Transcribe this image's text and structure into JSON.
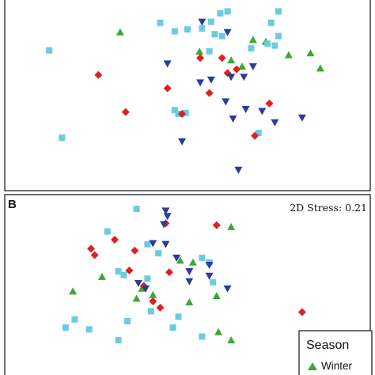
{
  "colors": {
    "Winter": "#3aaa35",
    "cyan_square": "#6ccbe0",
    "red_diamond": "#e02020",
    "blue_triangle": "#2a3c9e"
  },
  "panel_b_label": "B",
  "stress_label": "2D Stress: 0.21",
  "legend": {
    "title": "Season",
    "entries": [
      {
        "label": "Winter",
        "marker": "triangle-up",
        "color_key": "Winter"
      }
    ]
  },
  "chart_data": [
    {
      "type": "scatter",
      "panel": "A",
      "title": "",
      "xlabel": "",
      "ylabel": "",
      "xlim": [
        0,
        100
      ],
      "ylim": [
        0,
        100
      ],
      "grid": false,
      "series": [
        {
          "marker": "triangle-up",
          "color_key": "Winter",
          "name": "Winter",
          "x": [
            31.5,
            68.0,
            71.5,
            53.3,
            62.0,
            65.0,
            77.8,
            83.8,
            86.5
          ],
          "y": [
            83.0,
            79.0,
            78.0,
            72.8,
            68.3,
            65.0,
            71.0,
            72.0,
            64.0
          ]
        },
        {
          "marker": "square",
          "color_key": "cyan_square",
          "x": [
            12.0,
            15.5,
            42.5,
            46.5,
            50.0,
            54.0,
            56.0,
            59.0,
            56.5,
            61.0,
            57.5,
            59.5,
            75.0,
            73.0,
            75.0,
            74.0,
            72.0,
            67.5,
            46.5,
            47.5,
            49.5,
            69.5
          ],
          "y": [
            73.5,
            27.5,
            88.0,
            83.5,
            84.5,
            85.0,
            73.0,
            93.0,
            88.5,
            94.0,
            82.0,
            81.0,
            94.0,
            88.0,
            81.0,
            76.0,
            77.0,
            74.5,
            42.0,
            40.0,
            40.5,
            30.0
          ]
        },
        {
          "marker": "diamond",
          "color_key": "red_diamond",
          "x": [
            25.5,
            33.0,
            44.5,
            48.5,
            56.0,
            53.5,
            59.5,
            61.0,
            63.5,
            72.5,
            68.5
          ],
          "y": [
            60.5,
            41.0,
            53.5,
            40.0,
            51.0,
            69.5,
            69.5,
            61.5,
            63.5,
            45.5,
            28.5
          ]
        },
        {
          "marker": "triangle-down",
          "color_key": "blue_triangle",
          "x": [
            54.0,
            61.0,
            44.5,
            53.5,
            56.5,
            62.0,
            68.0,
            65.5,
            60.5,
            62.5,
            66.0,
            70.5,
            74.0,
            81.5,
            48.5,
            64.0
          ],
          "y": [
            88.5,
            83.0,
            66.5,
            56.5,
            58.0,
            59.5,
            65.0,
            59.5,
            46.5,
            37.5,
            42.5,
            41.5,
            35.5,
            38.0,
            25.5,
            10.5
          ]
        }
      ]
    },
    {
      "type": "scatter",
      "panel": "B",
      "title": "",
      "xlabel": "",
      "ylabel": "",
      "xlim": [
        0,
        100
      ],
      "ylim": [
        0,
        100
      ],
      "grid": false,
      "series": [
        {
          "marker": "triangle-up",
          "color_key": "Winter",
          "name": "Winter",
          "x": [
            62.0,
            26.5,
            18.5,
            37.5,
            48.0,
            51.5,
            36.0,
            40.5,
            50.5,
            58.0,
            62.0,
            58.5
          ],
          "y": [
            83.0,
            55.5,
            47.5,
            49.0,
            64.5,
            63.5,
            43.5,
            45.5,
            41.5,
            45.0,
            20.5,
            25.0
          ]
        },
        {
          "marker": "square",
          "color_key": "cyan_square",
          "x": [
            36.0,
            28.0,
            39.0,
            31.0,
            32.5,
            39.0,
            42.0,
            54.0,
            56.0,
            57.0,
            19.0,
            16.5,
            23.0,
            31.0,
            33.5,
            46.0,
            54.0,
            40.0,
            47.5
          ],
          "y": [
            93.0,
            80.5,
            73.5,
            58.5,
            56.5,
            54.5,
            68.5,
            66.0,
            63.5,
            52.5,
            32.0,
            27.5,
            26.5,
            20.5,
            31.0,
            27.5,
            22.5,
            36.5,
            33.5
          ]
        },
        {
          "marker": "diamond",
          "color_key": "red_diamond",
          "x": [
            44.0,
            30.0,
            23.5,
            24.5,
            35.5,
            34.0,
            38.0,
            45.0,
            58.0,
            42.5,
            40.5,
            81.5
          ],
          "y": [
            85.0,
            76.0,
            71.0,
            67.5,
            70.0,
            59.0,
            50.5,
            58.0,
            84.0,
            38.5,
            42.0,
            36.0
          ]
        },
        {
          "marker": "triangle-down",
          "color_key": "blue_triangle",
          "x": [
            44.0,
            44.5,
            43.5,
            40.5,
            44.0,
            47.0,
            50.5,
            56.0,
            50.5,
            56.0,
            61.0,
            36.5,
            38.5
          ],
          "y": [
            92.0,
            89.0,
            84.5,
            74.0,
            73.5,
            66.0,
            58.5,
            62.0,
            53.0,
            56.0,
            49.0,
            52.0,
            49.0
          ]
        }
      ]
    }
  ]
}
